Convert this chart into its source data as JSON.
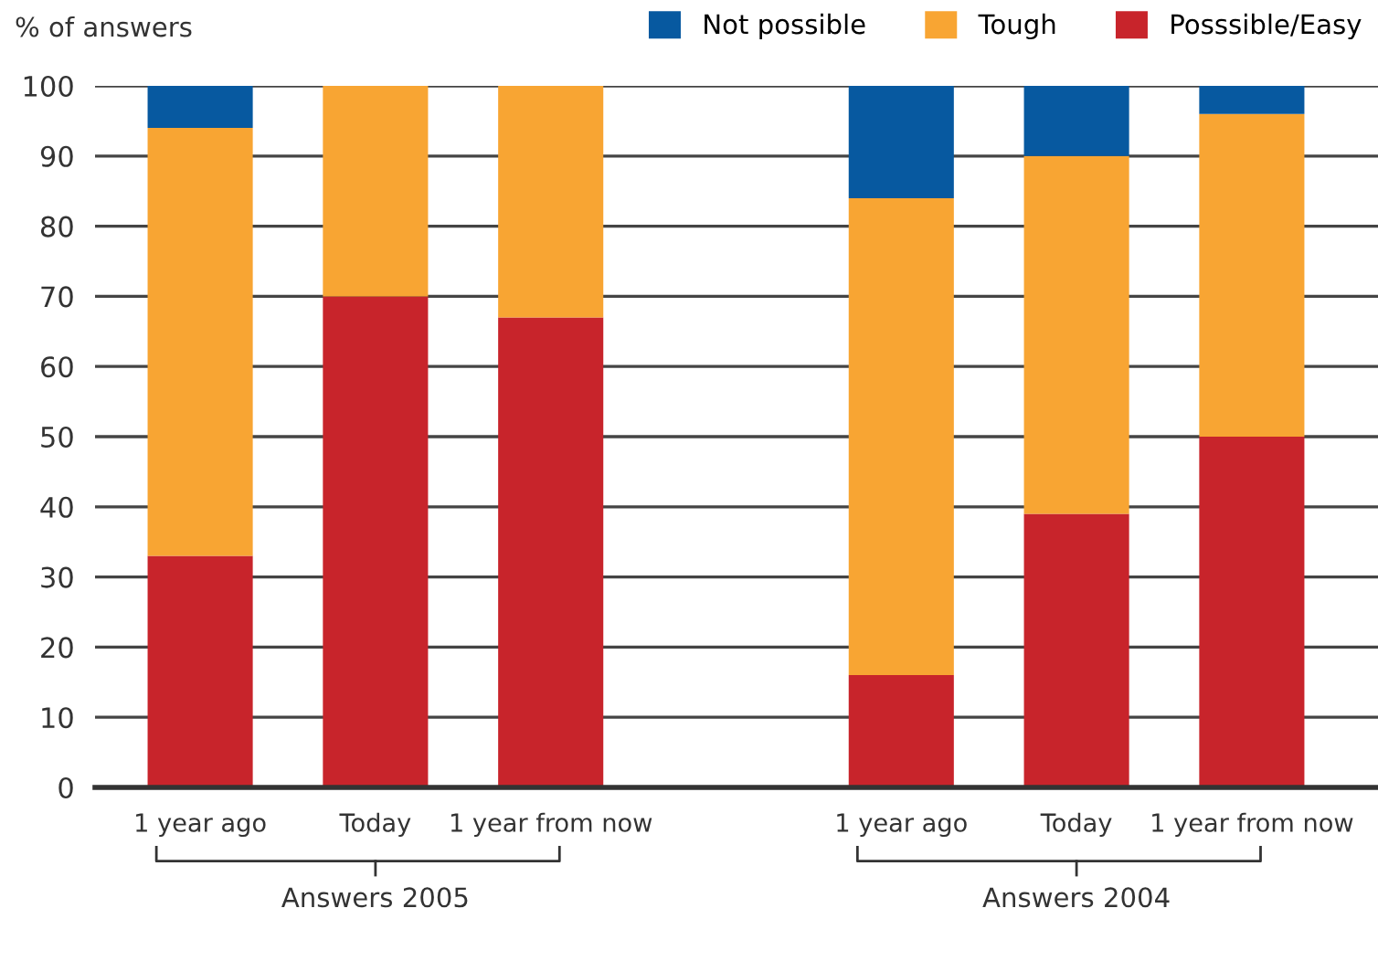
{
  "chart_data": {
    "type": "bar",
    "stacked": true,
    "ylabel": "% of answers",
    "categories": [
      "1 year ago",
      "Today",
      "1 year from now",
      null,
      "1 year ago",
      "Today",
      "1 year from now"
    ],
    "series": [
      {
        "name": "Posssible/Easy",
        "color": "#c8242b",
        "values": [
          33,
          70,
          67,
          null,
          16,
          39,
          50
        ]
      },
      {
        "name": "Tough",
        "color": "#f8a533",
        "values": [
          61,
          30,
          33,
          null,
          68,
          51,
          46
        ]
      },
      {
        "name": "Not possible",
        "color": "#0759a0",
        "values": [
          6,
          0,
          0,
          null,
          16,
          10,
          4
        ]
      }
    ],
    "ylim": [
      0,
      100
    ],
    "yticks": [
      0,
      10,
      20,
      30,
      40,
      50,
      60,
      70,
      80,
      90,
      100
    ],
    "grid": "y",
    "legend": "top right",
    "annotations": [
      "Answers 2005",
      "Answers 2004"
    ]
  }
}
